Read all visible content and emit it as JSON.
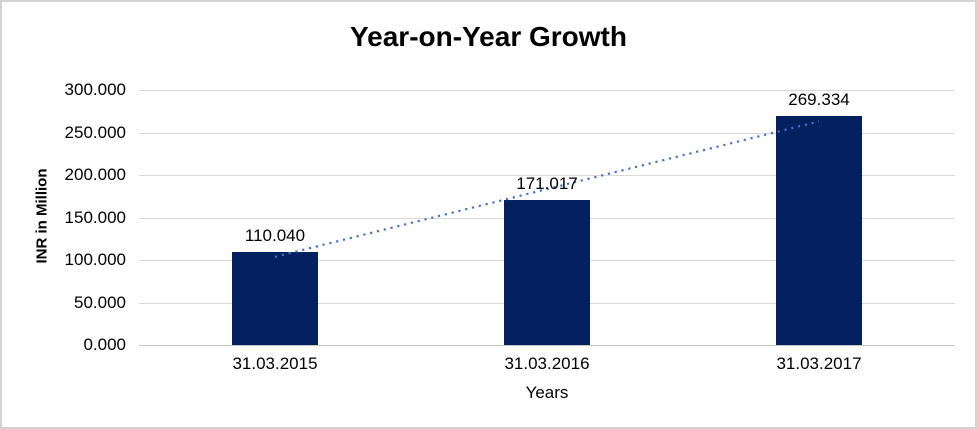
{
  "chart_data": {
    "type": "bar",
    "title": "Year-on-Year Growth",
    "xlabel": "Years",
    "ylabel": "INR in Million",
    "categories": [
      "31.03.2015",
      "31.03.2016",
      "31.03.2017"
    ],
    "values": [
      110.04,
      171.017,
      269.334
    ],
    "data_labels": [
      "110.040",
      "171.017",
      "269.334"
    ],
    "ylim": [
      0,
      300
    ],
    "ytick_step": 50,
    "ytick_labels": [
      "0.000",
      "50.000",
      "100.000",
      "150.000",
      "200.000",
      "250.000",
      "300.000"
    ],
    "grid": true,
    "legend": "none",
    "bar_color": "#02215e",
    "gridline_color": "#d9d9d9",
    "axis_line_color": "#c3c3c3",
    "trendline": {
      "type": "linear",
      "style": "dotted",
      "color": "#4472c4"
    }
  }
}
